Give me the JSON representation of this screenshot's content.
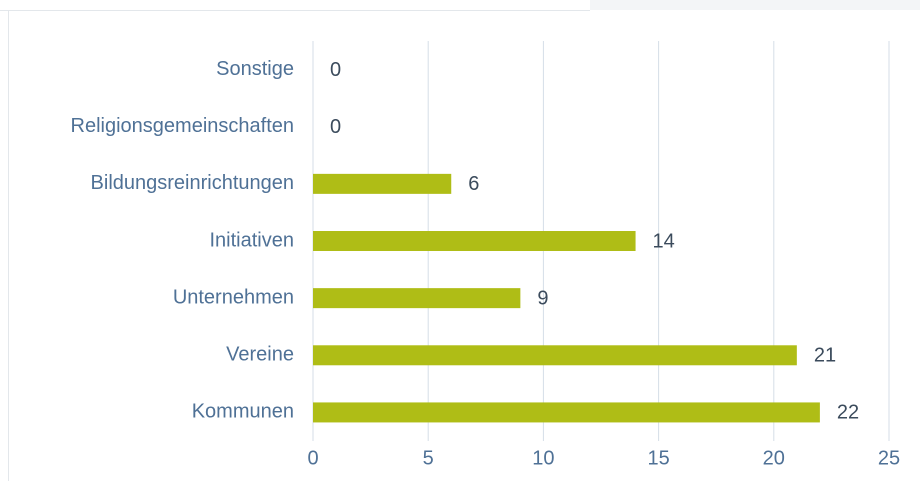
{
  "chart_data": {
    "type": "bar",
    "orientation": "horizontal",
    "categories": [
      "Sonstige",
      "Religionsgemeinschaften",
      "Bildungsreinrichtungen",
      "Initiativen",
      "Unternehmen",
      "Vereine",
      "Kommunen"
    ],
    "values": [
      0,
      0,
      6,
      14,
      9,
      21,
      22
    ],
    "color": "#afbd16",
    "xlim": [
      0,
      25
    ],
    "xticks": [
      0,
      5,
      10,
      15,
      20,
      25
    ],
    "grid": true
  }
}
